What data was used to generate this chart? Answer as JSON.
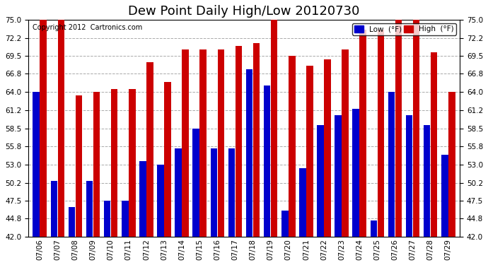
{
  "title": "Dew Point Daily High/Low 20120730",
  "copyright": "Copyright 2012  Cartronics.com",
  "dates": [
    "07/06",
    "07/07",
    "07/08",
    "07/09",
    "07/10",
    "07/11",
    "07/12",
    "07/13",
    "07/14",
    "07/15",
    "07/16",
    "07/17",
    "07/18",
    "07/19",
    "07/20",
    "07/21",
    "07/22",
    "07/23",
    "07/24",
    "07/25",
    "07/26",
    "07/27",
    "07/28",
    "07/29"
  ],
  "low": [
    64.0,
    50.5,
    46.5,
    50.5,
    47.5,
    47.5,
    53.5,
    53.0,
    55.5,
    58.5,
    55.5,
    55.5,
    67.5,
    65.0,
    46.0,
    52.5,
    59.0,
    60.5,
    61.5,
    44.5,
    64.0,
    60.5,
    59.0,
    54.5
  ],
  "high": [
    75.0,
    75.0,
    63.5,
    64.0,
    64.5,
    64.5,
    68.5,
    65.5,
    70.5,
    70.5,
    70.5,
    71.0,
    71.5,
    75.0,
    69.5,
    68.0,
    69.0,
    70.5,
    73.5,
    73.5,
    75.0,
    75.0,
    70.0,
    64.0
  ],
  "ylim": [
    42.0,
    75.0
  ],
  "yticks": [
    42.0,
    44.8,
    47.5,
    50.2,
    53.0,
    55.8,
    58.5,
    61.2,
    64.0,
    66.8,
    69.5,
    72.2,
    75.0
  ],
  "low_color": "#0000cc",
  "high_color": "#cc0000",
  "bg_color": "#ffffff",
  "grid_color": "#aaaaaa",
  "title_fontsize": 13,
  "legend_low_label": "Low  (°F)",
  "legend_high_label": "High  (°F)"
}
